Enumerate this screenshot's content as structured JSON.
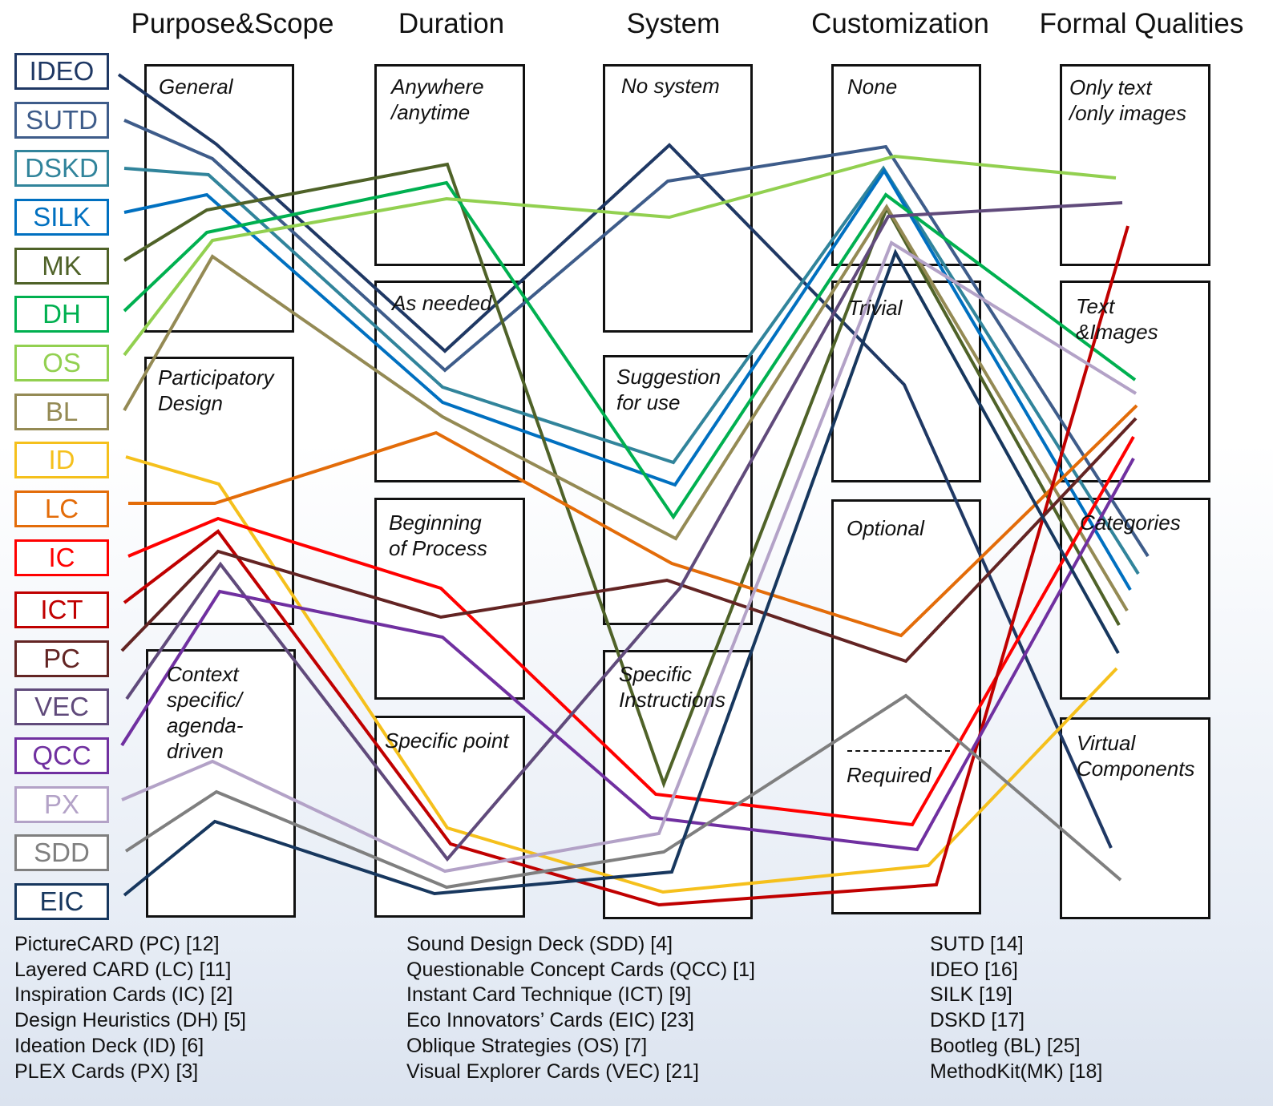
{
  "dimensions": [
    {
      "key": "purpose",
      "title": "Purpose&Scope"
    },
    {
      "key": "duration",
      "title": "Duration"
    },
    {
      "key": "system",
      "title": "System"
    },
    {
      "key": "customization",
      "title": "Customization"
    },
    {
      "key": "formal",
      "title": "Formal Qualities"
    }
  ],
  "categories": {
    "purpose": [
      "General",
      "Participatory\nDesign",
      "Context\nspecific/\nagenda-\ndriven"
    ],
    "duration": [
      "Anywhere\n/anytime",
      "As needed",
      "Beginning\nof Process",
      "Specific point"
    ],
    "system": [
      "No system",
      "Suggestion\nfor use",
      "Specific\nInstructions"
    ],
    "customization": [
      "None",
      "Trivial",
      "Optional",
      "Required"
    ],
    "formal": [
      "Only text\n/only images",
      "Text\n&Images",
      "Categories",
      "Virtual\nComponents"
    ]
  },
  "systems": [
    {
      "code": "IDEO",
      "color": "#1f3864",
      "path": [
        "General",
        "As needed",
        "No system",
        "Trivial",
        "Virtual Components"
      ]
    },
    {
      "code": "SUTD",
      "color": "#3e5c8a",
      "path": [
        "General",
        "As needed",
        "No system",
        "None",
        "Categories"
      ]
    },
    {
      "code": "DSKD",
      "color": "#31849b",
      "path": [
        "General",
        "As needed",
        "Suggestion for use",
        "None",
        "Categories"
      ]
    },
    {
      "code": "SILK",
      "color": "#0070c0",
      "path": [
        "General",
        "As needed",
        "Suggestion for use",
        "None",
        "Categories"
      ]
    },
    {
      "code": "MK",
      "color": "#4f6228",
      "path": [
        "General",
        "Anywhere /anytime",
        "Specific Instructions",
        "None",
        "Categories"
      ]
    },
    {
      "code": "DH",
      "color": "#00b050",
      "path": [
        "General",
        "Anywhere /anytime",
        "Suggestion for use",
        "None",
        "Text &Images"
      ]
    },
    {
      "code": "OS",
      "color": "#92d050",
      "path": [
        "General",
        "Anywhere /anytime",
        "No system",
        "None",
        "Only text /only images"
      ]
    },
    {
      "code": "BL",
      "color": "#948a54",
      "path": [
        "General",
        "As needed",
        "Suggestion for use",
        "None",
        "Categories"
      ]
    },
    {
      "code": "ID",
      "color": "#f5c01c",
      "path": [
        "Participatory Design",
        "Specific point",
        "Specific Instructions",
        "Required",
        "Categories"
      ]
    },
    {
      "code": "LC",
      "color": "#e36c09",
      "path": [
        "Participatory Design",
        "As needed",
        "Suggestion for use",
        "Optional",
        "Text &Images"
      ]
    },
    {
      "code": "IC",
      "color": "#ff0000",
      "path": [
        "Participatory Design",
        "Beginning of Process",
        "Specific Instructions",
        "Required",
        "Text &Images"
      ]
    },
    {
      "code": "ICT",
      "color": "#c00000",
      "path": [
        "Participatory Design",
        "Specific point",
        "Specific Instructions",
        "Required",
        "Only text /only images"
      ]
    },
    {
      "code": "PC",
      "color": "#632423",
      "path": [
        "Participatory Design",
        "Beginning of Process",
        "Suggestion for use",
        "Optional",
        "Text &Images"
      ]
    },
    {
      "code": "VEC",
      "color": "#604a7b",
      "path": [
        "Participatory Design",
        "Specific point",
        "Suggestion for use",
        "None",
        "Only text /only images"
      ]
    },
    {
      "code": "QCC",
      "color": "#7030a0",
      "path": [
        "Participatory Design",
        "Beginning of Process",
        "Specific Instructions",
        "Required",
        "Categories"
      ]
    },
    {
      "code": "PX",
      "color": "#b3a2c7",
      "path": [
        "Context specific/ agenda-driven",
        "Specific point",
        "Specific Instructions",
        "None",
        "Text &Images"
      ]
    },
    {
      "code": "SDD",
      "color": "#7f7f7f",
      "path": [
        "Context specific/ agenda-driven",
        "Specific point",
        "Specific Instructions",
        "Optional",
        "Virtual Components"
      ]
    },
    {
      "code": "EIC",
      "color": "#17375e",
      "path": [
        "Context specific/ agenda-driven",
        "Specific point",
        "Specific Instructions",
        "Trivial",
        "Categories"
      ]
    }
  ],
  "references": [
    [
      "PictureCARD (PC) [12]",
      "Layered CARD (LC) [11]",
      "Inspiration Cards (IC) [2]",
      "Design Heuristics (DH) [5]",
      "Ideation Deck (ID) [6]",
      "PLEX Cards (PX) [3]"
    ],
    [
      "Sound Design Deck (SDD) [4]",
      "Questionable Concept Cards (QCC) [1]",
      "Instant Card Technique (ICT) [9]",
      "Eco Innovators’ Cards (EIC) [23]",
      "Oblique Strategies (OS) [7]",
      "Visual Explorer Cards (VEC) [21]"
    ],
    [
      "SUTD [14]",
      "IDEO [16]",
      "SILK [19]",
      "DSKD [17]",
      "Bootleg (BL) [25]",
      "MethodKit(MK) [18]"
    ]
  ]
}
